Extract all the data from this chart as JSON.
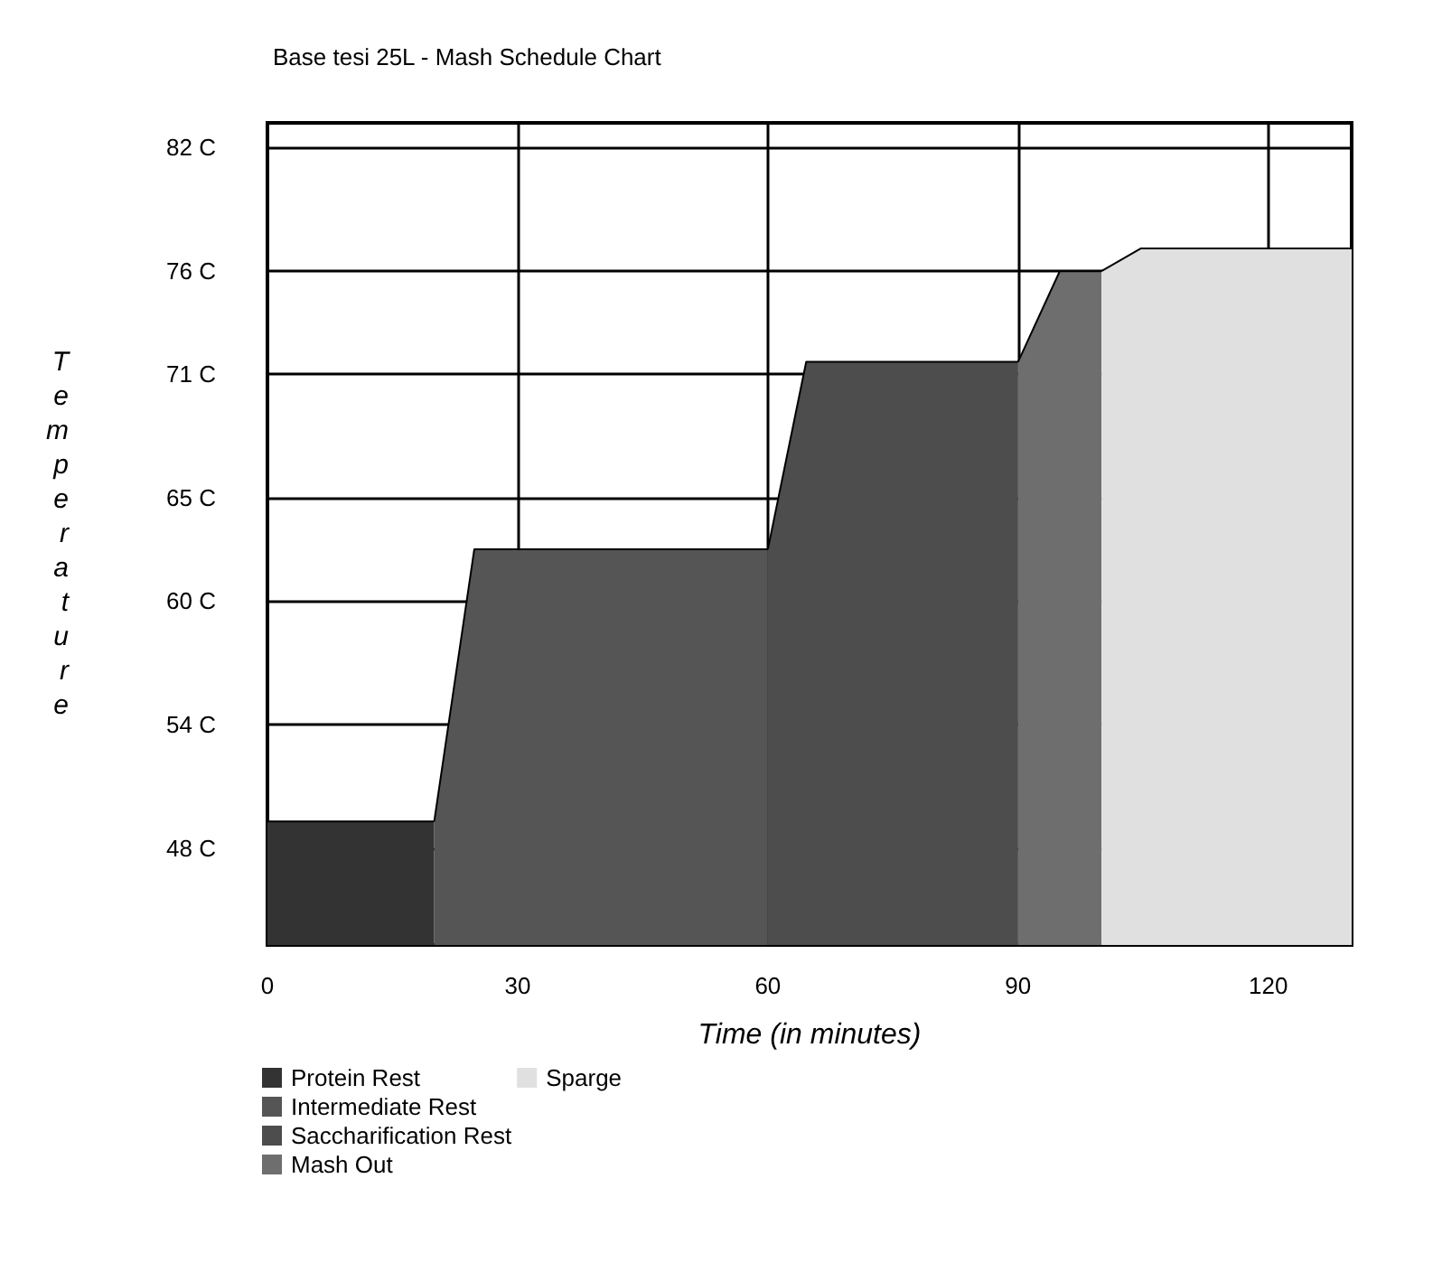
{
  "chart_data": {
    "type": "area",
    "title": "Base tesi 25L - Mash Schedule Chart",
    "xlabel": "Time (in minutes)",
    "ylabel": "Temperature",
    "series": [
      {
        "name": "Protein Rest",
        "color": "#333333",
        "x": [
          0,
          20
        ],
        "values": [
          49.3,
          49.3
        ]
      },
      {
        "name": "Intermediate Rest",
        "color": "#555555",
        "x": [
          20,
          24.8,
          60
        ],
        "values": [
          49.3,
          62.5,
          62.5
        ]
      },
      {
        "name": "Saccharification Rest",
        "color": "#4d4d4d",
        "x": [
          60,
          64.6,
          90
        ],
        "values": [
          62.5,
          71.6,
          71.6
        ]
      },
      {
        "name": "Mash Out",
        "color": "#6e6e6e",
        "x": [
          90,
          95,
          100
        ],
        "values": [
          71.6,
          76,
          76
        ]
      },
      {
        "name": "Sparge",
        "color": "#e0e0e0",
        "x": [
          100,
          104.7,
          130
        ],
        "values": [
          76,
          77.1,
          77.1
        ]
      }
    ],
    "xlim": [
      0,
      130
    ],
    "xticks": [
      0,
      30,
      60,
      90,
      120
    ],
    "ylim": [
      43.3,
      83.2
    ],
    "yticks": [
      {
        "value": 48,
        "label": "48 C"
      },
      {
        "value": 54,
        "label": "54 C"
      },
      {
        "value": 60,
        "label": "60 C"
      },
      {
        "value": 65,
        "label": "65 C"
      },
      {
        "value": 71,
        "label": "71 C"
      },
      {
        "value": 76,
        "label": "76 C"
      },
      {
        "value": 82,
        "label": "82 C"
      }
    ],
    "grid": true,
    "legend": "bottom left",
    "marker": "none",
    "line_style": "solid"
  }
}
